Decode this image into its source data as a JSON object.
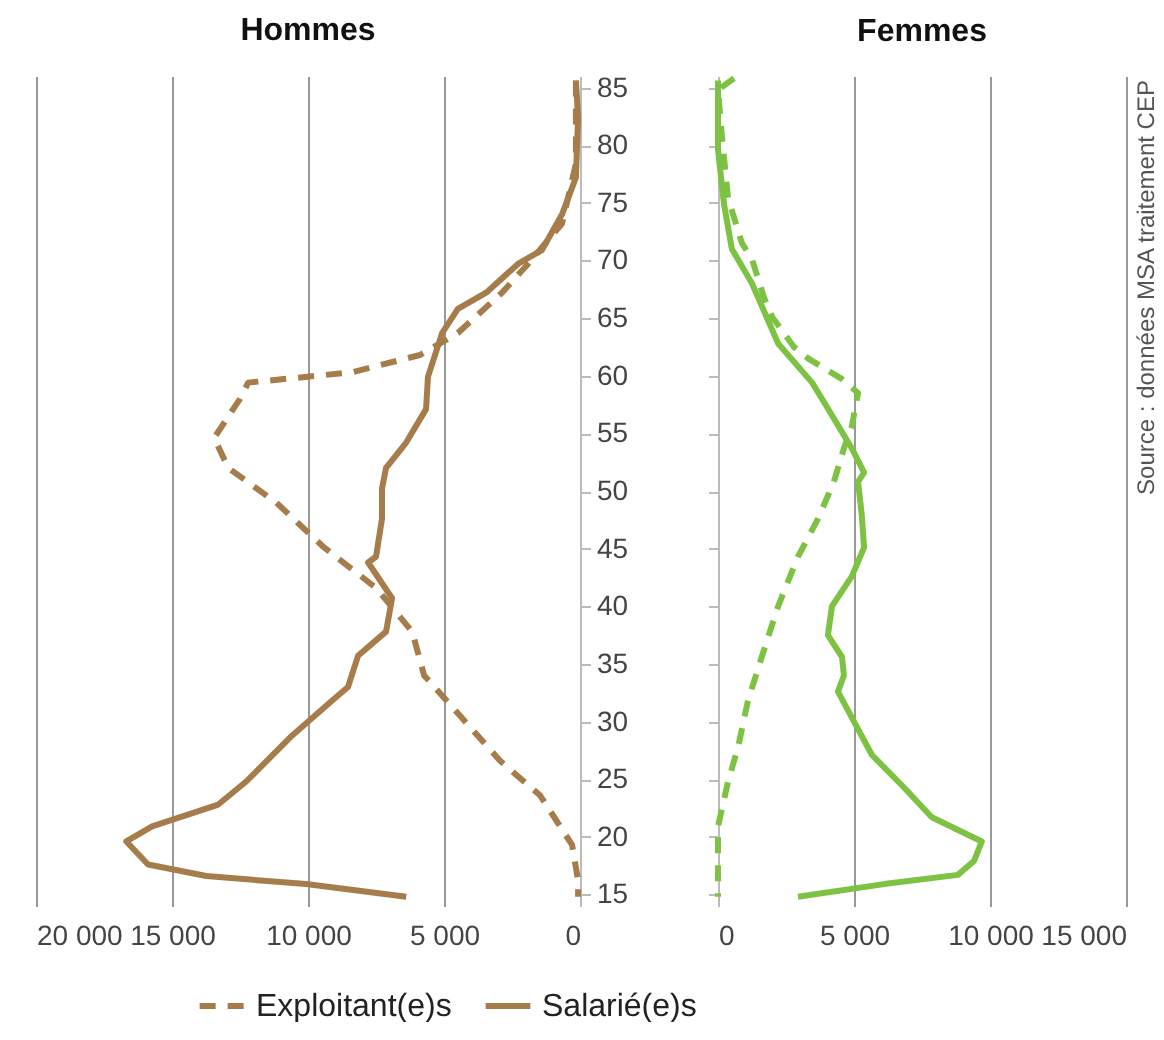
{
  "chart_data": [
    {
      "type": "line",
      "title": "Hommes",
      "xlim": [
        20000,
        0
      ],
      "xticks": [
        {
          "value": 20000,
          "label": "20 000"
        },
        {
          "value": 15000,
          "label": "15 000"
        },
        {
          "value": 10000,
          "label": "10 000"
        },
        {
          "value": 5000,
          "label": "5 000"
        },
        0
      ],
      "ylim": [
        14,
        86
      ],
      "yticks": [
        15,
        20,
        25,
        30,
        35,
        40,
        45,
        50,
        55,
        60,
        65,
        70,
        75,
        80,
        85
      ],
      "grid": "x",
      "legend": "bottom",
      "series": [
        {
          "name": "Exploitant(e)s",
          "color": "#a67c4a",
          "line_style": "dashed",
          "x": [
            150,
            150,
            660,
            1910,
            2870,
            4490,
            5880,
            8380,
            12200,
            12500,
            13450,
            12930,
            11170,
            9410,
            7500,
            6170,
            5730,
            4410,
            2940,
            1470,
            290,
            70,
            70
          ],
          "values": [
            85.6,
            78.4,
            73.2,
            69.7,
            67.2,
            63.7,
            61.8,
            60.3,
            59.4,
            58.0,
            54.6,
            52.0,
            49.0,
            45.1,
            41.6,
            37.8,
            34.0,
            30.5,
            26.6,
            23.6,
            19.3,
            16.2,
            14.8
          ]
        },
        {
          "name": "Salarié(e)s",
          "color": "#a67c4a",
          "line_style": "solid",
          "x": [
            150,
            70,
            150,
            660,
            1400,
            2280,
            3450,
            4490,
            5070,
            5590,
            5660,
            6390,
            7130,
            7280,
            7280,
            7500,
            7790,
            6910,
            7130,
            8160,
            8530,
            9120,
            10580,
            12270,
            13300,
            15730,
            16680,
            15880,
            13740,
            10070,
            6390
          ],
          "values": [
            85.6,
            82.4,
            77.2,
            74.0,
            70.9,
            69.7,
            67.2,
            65.8,
            63.7,
            59.9,
            57.1,
            54.2,
            52.0,
            50.2,
            47.6,
            44.3,
            43.8,
            40.7,
            37.8,
            35.7,
            33.0,
            31.8,
            28.8,
            24.8,
            22.8,
            20.9,
            19.6,
            17.6,
            16.6,
            15.9,
            14.8
          ]
        }
      ]
    },
    {
      "type": "line",
      "title": "Femmes",
      "xlim": [
        0,
        15000
      ],
      "xticks": [
        0,
        {
          "value": 5000,
          "label": "5 000"
        },
        {
          "value": 10000,
          "label": "10 000"
        },
        {
          "value": 15000,
          "label": "15 000"
        }
      ],
      "ylim": [
        14,
        86
      ],
      "yticks": [
        15,
        20,
        25,
        30,
        35,
        40,
        45,
        50,
        55,
        60,
        65,
        70,
        75,
        80,
        85
      ],
      "grid": "x",
      "tick_labels": "x",
      "annotations": [
        "Source : données MSA traitement CEP"
      ],
      "series": [
        {
          "color": "#7dc242",
          "line_style": "dashed",
          "x": [
            590,
            0,
            150,
            370,
            880,
            1250,
            1690,
            1990,
            2790,
            3310,
            4560,
            5150,
            4920,
            4630,
            4260,
            3680,
            2940,
            2210,
            1620,
            1100,
            740,
            370,
            0,
            0
          ],
          "values": [
            85.8,
            84.8,
            80.6,
            75.4,
            71.5,
            70.1,
            66.8,
            65.1,
            62.5,
            61.5,
            59.7,
            58.5,
            55.6,
            53.7,
            50.8,
            47.6,
            44.3,
            40.0,
            35.7,
            31.8,
            27.8,
            24.8,
            20.9,
            14.8
          ]
        },
        {
          "color": "#7dc242",
          "line_style": "solid",
          "x": [
            0,
            0,
            220,
            510,
            1250,
            2210,
            3460,
            3900,
            4920,
            5370,
            5150,
            5290,
            5370,
            4920,
            4190,
            4040,
            4560,
            4630,
            4410,
            5000,
            5660,
            6830,
            7860,
            9700,
            9410,
            8820,
            6100,
            2940
          ],
          "values": [
            85.6,
            79.6,
            74.9,
            71.0,
            68.0,
            62.8,
            59.4,
            57.7,
            53.7,
            51.6,
            50.8,
            47.8,
            45.1,
            42.6,
            40.0,
            37.5,
            35.6,
            34.0,
            32.6,
            30.0,
            27.1,
            24.3,
            21.7,
            19.6,
            17.9,
            16.7,
            15.9,
            14.8
          ]
        }
      ]
    }
  ]
}
